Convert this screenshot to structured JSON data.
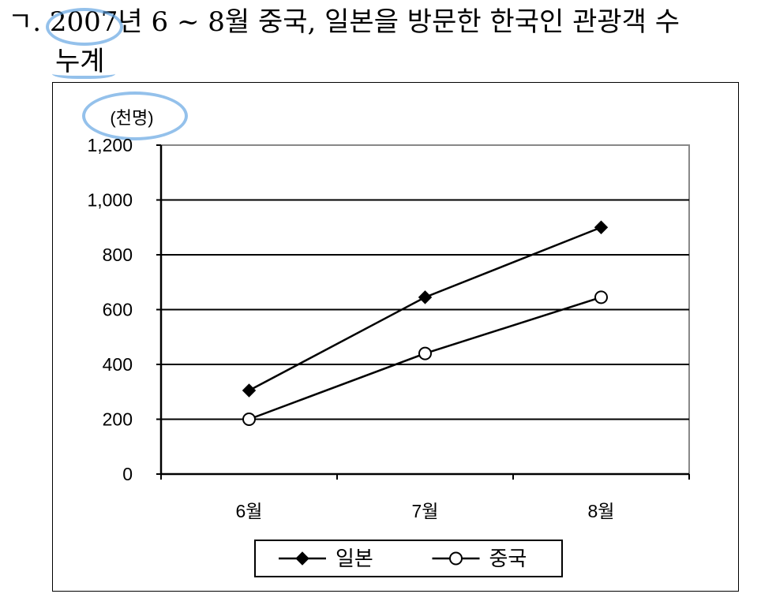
{
  "header": {
    "title_line1": "ㄱ. 2007년 6 ~ 8월 중국, 일본을 방문한 한국인 관광객 수",
    "title_line2": "누계"
  },
  "chart_data": {
    "type": "line",
    "unit_label": "(천명)",
    "categories": [
      "6월",
      "7월",
      "8월"
    ],
    "ylim": [
      0,
      1200
    ],
    "yticks": [
      "0",
      "200",
      "400",
      "600",
      "800",
      "1,000",
      "1,200"
    ],
    "ytick_values": [
      0,
      200,
      400,
      600,
      800,
      1000,
      1200
    ],
    "grid": true,
    "legend_position": "bottom",
    "series": [
      {
        "name": "일본",
        "marker": "filled-diamond",
        "values": [
          305,
          645,
          900
        ]
      },
      {
        "name": "중국",
        "marker": "open-circle",
        "values": [
          200,
          440,
          645
        ]
      }
    ]
  },
  "colors": {
    "line": "#000000",
    "highlight": "#5aa0e1"
  }
}
